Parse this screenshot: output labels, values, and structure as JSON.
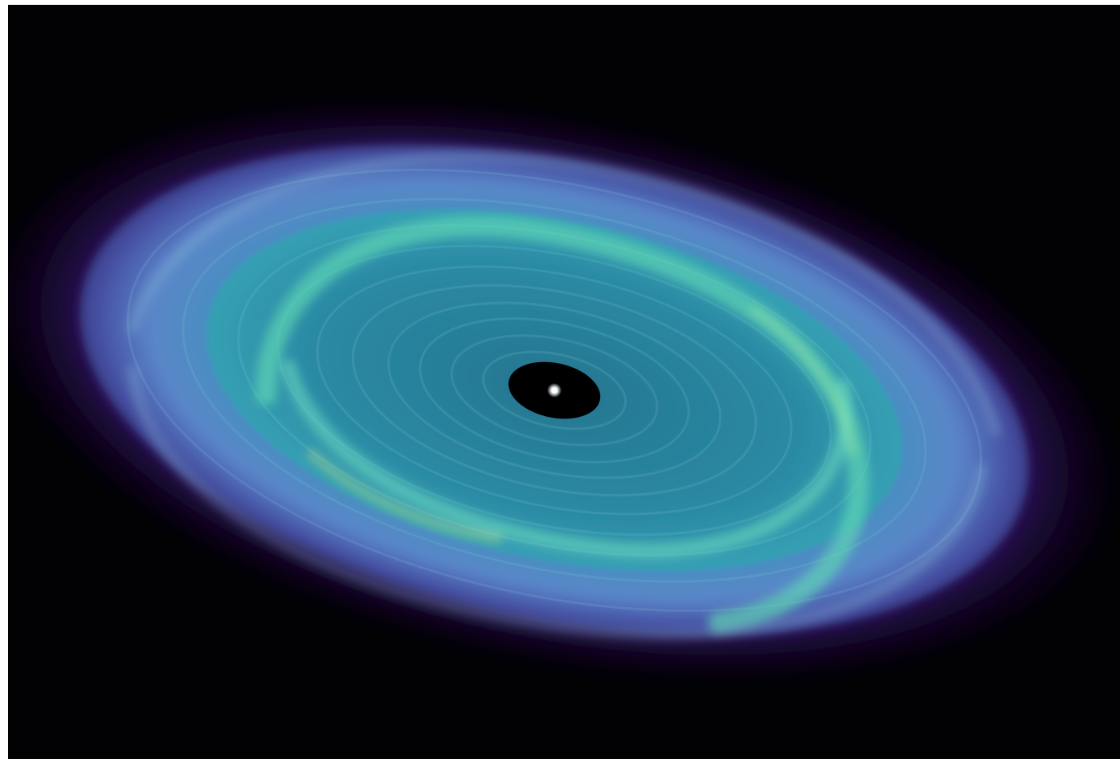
{
  "image": {
    "subject_icon": "accretion-disk-icon",
    "colors": {
      "background": "#020104",
      "outer_halo": "#3a1a78",
      "outer_disk": "#4b5fb8",
      "mid_disk": "#3f93bd",
      "inner_disk": "#2f8fa8",
      "bright_band": "#5fd8b4",
      "core_shadow": "#000000",
      "center_glow": "#ffffff"
    }
  }
}
